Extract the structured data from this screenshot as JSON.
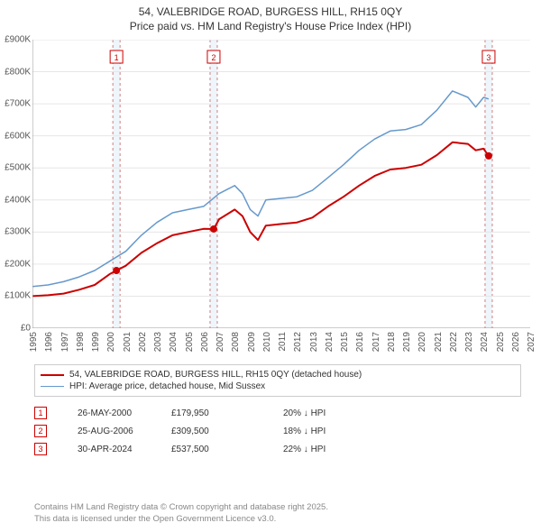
{
  "title_line1": "54, VALEBRIDGE ROAD, BURGESS HILL, RH15 0QY",
  "title_line2": "Price paid vs. HM Land Registry's House Price Index (HPI)",
  "chart": {
    "type": "line",
    "background_color": "#ffffff",
    "grid_color": "#e6e6e6",
    "axis_color": "#999999",
    "x_years": [
      1995,
      1996,
      1997,
      1998,
      1999,
      2000,
      2001,
      2002,
      2003,
      2004,
      2005,
      2006,
      2007,
      2008,
      2009,
      2010,
      2011,
      2012,
      2013,
      2014,
      2015,
      2016,
      2017,
      2018,
      2019,
      2020,
      2021,
      2022,
      2023,
      2024,
      2025,
      2026,
      2027
    ],
    "xlim": [
      1995,
      2027
    ],
    "ylim": [
      0,
      900000
    ],
    "ytick_step": 100000,
    "ytick_labels": [
      "£0",
      "£100K",
      "£200K",
      "£300K",
      "£400K",
      "£500K",
      "£600K",
      "£700K",
      "£800K",
      "£900K"
    ],
    "label_fontsize": 10,
    "series": [
      {
        "id": "price_paid",
        "label": "54, VALEBRIDGE ROAD, BURGESS HILL, RH15 0QY (detached house)",
        "color": "#cc0000",
        "line_width": 2,
        "points": [
          [
            1995.0,
            100000
          ],
          [
            1996.0,
            103000
          ],
          [
            1997.0,
            108000
          ],
          [
            1998.0,
            120000
          ],
          [
            1999.0,
            135000
          ],
          [
            2000.0,
            170000
          ],
          [
            2000.4,
            179950
          ],
          [
            2001.0,
            195000
          ],
          [
            2002.0,
            235000
          ],
          [
            2003.0,
            265000
          ],
          [
            2004.0,
            290000
          ],
          [
            2005.0,
            300000
          ],
          [
            2006.0,
            310000
          ],
          [
            2006.65,
            309500
          ],
          [
            2007.0,
            340000
          ],
          [
            2008.0,
            370000
          ],
          [
            2008.5,
            350000
          ],
          [
            2009.0,
            300000
          ],
          [
            2009.5,
            275000
          ],
          [
            2010.0,
            320000
          ],
          [
            2011.0,
            325000
          ],
          [
            2012.0,
            330000
          ],
          [
            2013.0,
            345000
          ],
          [
            2014.0,
            380000
          ],
          [
            2015.0,
            410000
          ],
          [
            2016.0,
            445000
          ],
          [
            2017.0,
            475000
          ],
          [
            2018.0,
            495000
          ],
          [
            2019.0,
            500000
          ],
          [
            2020.0,
            510000
          ],
          [
            2021.0,
            540000
          ],
          [
            2022.0,
            580000
          ],
          [
            2023.0,
            575000
          ],
          [
            2023.5,
            555000
          ],
          [
            2024.0,
            560000
          ],
          [
            2024.33,
            537500
          ]
        ]
      },
      {
        "id": "hpi",
        "label": "HPI: Average price, detached house, Mid Sussex",
        "color": "#6699cc",
        "line_width": 1.5,
        "points": [
          [
            1995.0,
            130000
          ],
          [
            1996.0,
            135000
          ],
          [
            1997.0,
            145000
          ],
          [
            1998.0,
            160000
          ],
          [
            1999.0,
            180000
          ],
          [
            2000.0,
            210000
          ],
          [
            2001.0,
            240000
          ],
          [
            2002.0,
            290000
          ],
          [
            2003.0,
            330000
          ],
          [
            2004.0,
            360000
          ],
          [
            2005.0,
            370000
          ],
          [
            2006.0,
            380000
          ],
          [
            2007.0,
            420000
          ],
          [
            2008.0,
            445000
          ],
          [
            2008.5,
            420000
          ],
          [
            2009.0,
            370000
          ],
          [
            2009.5,
            350000
          ],
          [
            2010.0,
            400000
          ],
          [
            2011.0,
            405000
          ],
          [
            2012.0,
            410000
          ],
          [
            2013.0,
            430000
          ],
          [
            2014.0,
            470000
          ],
          [
            2015.0,
            510000
          ],
          [
            2016.0,
            555000
          ],
          [
            2017.0,
            590000
          ],
          [
            2018.0,
            615000
          ],
          [
            2019.0,
            620000
          ],
          [
            2020.0,
            635000
          ],
          [
            2021.0,
            680000
          ],
          [
            2022.0,
            740000
          ],
          [
            2023.0,
            720000
          ],
          [
            2023.5,
            690000
          ],
          [
            2024.0,
            720000
          ],
          [
            2024.33,
            715000
          ]
        ]
      }
    ],
    "sale_markers": [
      {
        "n": "1",
        "year": 2000.4,
        "price": 179950,
        "color": "#cc0000"
      },
      {
        "n": "2",
        "year": 2006.65,
        "price": 309500,
        "color": "#cc0000"
      },
      {
        "n": "3",
        "year": 2024.33,
        "price": 537500,
        "color": "#cc0000"
      }
    ],
    "vband_color": "#cfe2f3",
    "vline_color": "#d08080"
  },
  "legend": {
    "rows": [
      {
        "color": "#cc0000",
        "width": 2,
        "label": "54, VALEBRIDGE ROAD, BURGESS HILL, RH15 0QY (detached house)"
      },
      {
        "color": "#6699cc",
        "width": 1.5,
        "label": "HPI: Average price, detached house, Mid Sussex"
      }
    ]
  },
  "markers_table": {
    "rows": [
      {
        "n": "1",
        "color": "#cc0000",
        "date": "26-MAY-2000",
        "price": "£179,950",
        "diff": "20% ↓ HPI"
      },
      {
        "n": "2",
        "color": "#cc0000",
        "date": "25-AUG-2006",
        "price": "£309,500",
        "diff": "18% ↓ HPI"
      },
      {
        "n": "3",
        "color": "#cc0000",
        "date": "30-APR-2024",
        "price": "£537,500",
        "diff": "22% ↓ HPI"
      }
    ]
  },
  "footer_line1": "Contains HM Land Registry data © Crown copyright and database right 2025.",
  "footer_line2": "This data is licensed under the Open Government Licence v3.0."
}
